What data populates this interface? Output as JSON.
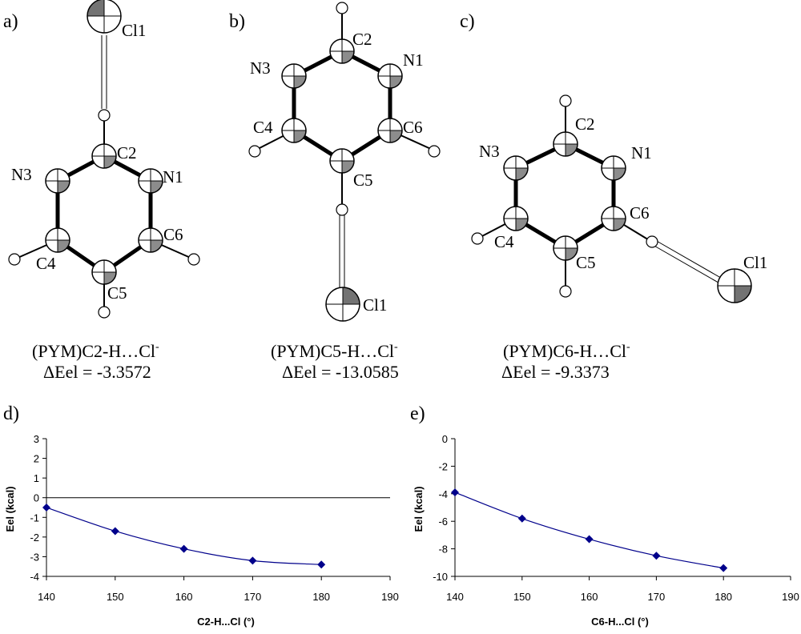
{
  "panels": {
    "a": {
      "letter": "a)",
      "caption": "(PYM)C2-H…Cl",
      "caption_sup": "-",
      "energy": "ΔEel = -3.3572",
      "atoms": {
        "cl": "Cl1",
        "c2": "C2",
        "n3": "N3",
        "n1": "N1",
        "c6": "C6",
        "c4": "C4",
        "c5": "C5"
      }
    },
    "b": {
      "letter": "b)",
      "caption": "(PYM)C5-H…Cl",
      "caption_sup": "-",
      "energy": "ΔEel = -13.0585",
      "atoms": {
        "c2": "C2",
        "n3": "N3",
        "n1": "N1",
        "c4": "C4",
        "c6": "C6",
        "c5": "C5",
        "cl": "Cl1"
      }
    },
    "c": {
      "letter": "c)",
      "caption": "(PYM)C6-H…Cl",
      "caption_sup": "-",
      "energy": "ΔEel = -9.3373",
      "atoms": {
        "c2": "C2",
        "n3": "N3",
        "n1": "N1",
        "c6": "C6",
        "c4": "C4",
        "c5": "C5",
        "cl": "Cl1"
      }
    },
    "d": {
      "letter": "d)"
    },
    "e": {
      "letter": "e)"
    }
  },
  "chart_data": [
    {
      "type": "line",
      "panel": "d",
      "xlabel": "C2-H...Cl (°)",
      "ylabel": "Eel (kcal)",
      "xlim": [
        140,
        190
      ],
      "ylim": [
        -4,
        3
      ],
      "xticks": [
        "140",
        "150",
        "160",
        "170",
        "180",
        "190"
      ],
      "yticks": [
        "3",
        "2",
        "1",
        "0",
        "-1",
        "-2",
        "-3",
        "-4"
      ],
      "x": [
        140,
        150,
        160,
        170,
        180
      ],
      "y": [
        -0.5,
        -1.7,
        -2.6,
        -3.2,
        -3.4
      ],
      "marker": "diamond",
      "color": "#00008b",
      "grid": false
    },
    {
      "type": "line",
      "panel": "e",
      "xlabel": "C6-H...Cl (°)",
      "ylabel": "Eel (kcal)",
      "xlim": [
        140,
        190
      ],
      "ylim": [
        -10,
        0
      ],
      "xticks": [
        "140",
        "150",
        "160",
        "170",
        "180",
        "190"
      ],
      "yticks": [
        "0",
        "-2",
        "-4",
        "-6",
        "-8",
        "-10"
      ],
      "x": [
        140,
        150,
        160,
        170,
        180
      ],
      "y": [
        -3.9,
        -5.8,
        -7.3,
        -8.5,
        -9.4
      ],
      "marker": "diamond",
      "color": "#00008b",
      "grid": false
    }
  ]
}
